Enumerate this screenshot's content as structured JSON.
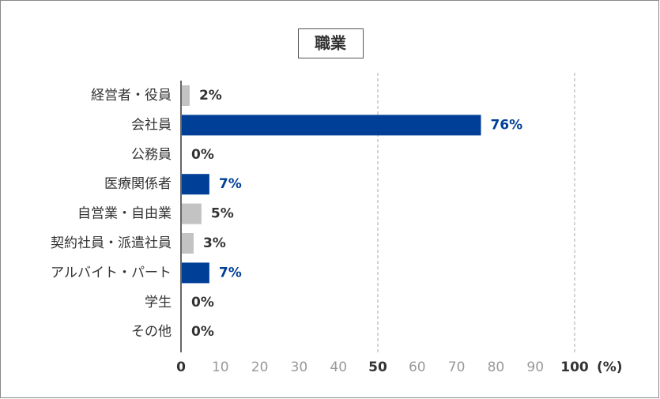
{
  "chart_data": {
    "type": "bar",
    "orientation": "horizontal",
    "title": "職業",
    "categories": [
      "経営者・役員",
      "会社員",
      "公務員",
      "医療関係者",
      "自営業・自由業",
      "契約社員・派遣社員",
      "アルバイト・パート",
      "学生",
      "その他"
    ],
    "values": [
      2,
      76,
      0,
      7,
      5,
      3,
      7,
      0,
      0
    ],
    "value_labels": [
      "2%",
      "76%",
      "0%",
      "7%",
      "5%",
      "3%",
      "7%",
      "0%",
      "0%"
    ],
    "highlight": [
      false,
      true,
      false,
      true,
      false,
      false,
      true,
      false,
      false
    ],
    "highlight_color": "#003f98",
    "base_color": "#c3c3c3",
    "xlim": [
      0,
      100
    ],
    "xticks": [
      0,
      10,
      20,
      30,
      40,
      50,
      60,
      70,
      80,
      90,
      100
    ],
    "major_ticks": [
      0,
      50,
      100
    ],
    "x_unit": "(%)",
    "grid": true
  }
}
